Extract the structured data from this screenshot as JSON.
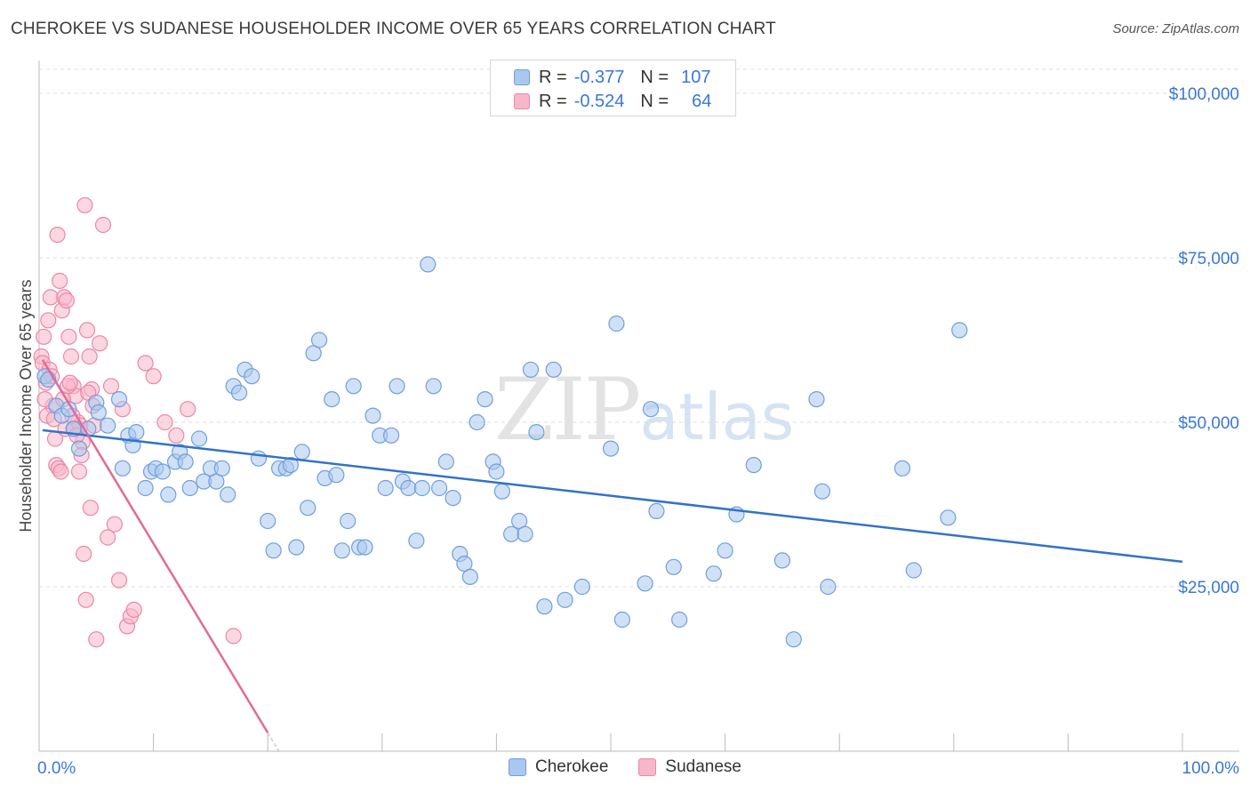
{
  "title": "CHEROKEE VS SUDANESE HOUSEHOLDER INCOME OVER 65 YEARS CORRELATION CHART",
  "source": "Source: ZipAtlas.com",
  "watermark": {
    "zip": "ZIP",
    "atlas": "atlas"
  },
  "colors": {
    "cherokee_fill": "#a9c8ef",
    "cherokee_stroke": "#6f9fdc",
    "cherokee_line": "#3372c9",
    "sudanese_fill": "#f7b7ca",
    "sudanese_stroke": "#ec86a7",
    "sudanese_line": "#e26a97",
    "tick_label": "#3a78d4",
    "grid": "#dcdcdc"
  },
  "legend": {
    "rows": [
      {
        "r_label": "R =",
        "r_value": "-0.377",
        "n_label": "N =",
        "n_value": "107"
      },
      {
        "r_label": "R =",
        "r_value": "-0.524",
        "n_label": "N =",
        "n_value": "64"
      }
    ]
  },
  "chart_data": {
    "type": "scatter",
    "title": "CHEROKEE VS SUDANESE HOUSEHOLDER INCOME OVER 65 YEARS CORRELATION CHART",
    "xlabel": "",
    "ylabel": "Householder Income Over 65 years",
    "xlim": [
      0,
      100
    ],
    "ylim": [
      0,
      105000
    ],
    "x_tick_labels": [
      "0.0%",
      "100.0%"
    ],
    "y_ticks": [
      25000,
      50000,
      75000,
      100000
    ],
    "y_tick_labels": [
      "$25,000",
      "$50,000",
      "$75,000",
      "$100,000"
    ],
    "grid": "horizontal dashed",
    "legend_placement": "top-center",
    "series": [
      {
        "name": "Cherokee",
        "trend": {
          "x": [
            0.3,
            100
          ],
          "y": [
            48800,
            28800
          ]
        },
        "points": [
          [
            0.5,
            57000
          ],
          [
            0.8,
            56500
          ],
          [
            1.5,
            52500
          ],
          [
            2.0,
            51000
          ],
          [
            2.6,
            52000
          ],
          [
            3.0,
            49000
          ],
          [
            3.5,
            46000
          ],
          [
            4.3,
            49000
          ],
          [
            5.0,
            53000
          ],
          [
            5.2,
            51500
          ],
          [
            6.0,
            49500
          ],
          [
            7.0,
            53500
          ],
          [
            7.3,
            43000
          ],
          [
            7.8,
            48000
          ],
          [
            8.2,
            46500
          ],
          [
            8.5,
            48500
          ],
          [
            9.3,
            40000
          ],
          [
            9.8,
            42500
          ],
          [
            10.2,
            43000
          ],
          [
            10.8,
            42500
          ],
          [
            11.3,
            39000
          ],
          [
            11.9,
            44000
          ],
          [
            12.3,
            45500
          ],
          [
            12.8,
            44000
          ],
          [
            13.2,
            40000
          ],
          [
            14.0,
            47500
          ],
          [
            14.4,
            41000
          ],
          [
            15.0,
            43000
          ],
          [
            15.5,
            41000
          ],
          [
            16.0,
            43000
          ],
          [
            16.5,
            39000
          ],
          [
            17.0,
            55500
          ],
          [
            17.5,
            54500
          ],
          [
            18.0,
            58000
          ],
          [
            18.6,
            57000
          ],
          [
            19.2,
            44500
          ],
          [
            20.0,
            35000
          ],
          [
            20.5,
            30500
          ],
          [
            21.0,
            43000
          ],
          [
            21.6,
            43000
          ],
          [
            22.0,
            43500
          ],
          [
            22.5,
            31000
          ],
          [
            23.0,
            45500
          ],
          [
            23.5,
            37000
          ],
          [
            24.0,
            60500
          ],
          [
            24.5,
            62500
          ],
          [
            25.0,
            41500
          ],
          [
            25.6,
            53500
          ],
          [
            26.0,
            42000
          ],
          [
            26.5,
            30500
          ],
          [
            27.0,
            35000
          ],
          [
            27.5,
            55500
          ],
          [
            28.0,
            31000
          ],
          [
            28.5,
            31000
          ],
          [
            29.2,
            51000
          ],
          [
            29.8,
            48000
          ],
          [
            30.3,
            40000
          ],
          [
            30.8,
            48000
          ],
          [
            31.3,
            55500
          ],
          [
            31.8,
            41000
          ],
          [
            32.3,
            40000
          ],
          [
            33.0,
            32000
          ],
          [
            33.5,
            40000
          ],
          [
            34.0,
            74000
          ],
          [
            34.5,
            55500
          ],
          [
            35.0,
            40000
          ],
          [
            35.6,
            44000
          ],
          [
            36.2,
            38500
          ],
          [
            36.8,
            30000
          ],
          [
            37.2,
            28500
          ],
          [
            37.7,
            26500
          ],
          [
            38.3,
            50000
          ],
          [
            39.0,
            53500
          ],
          [
            39.7,
            44000
          ],
          [
            40.0,
            42500
          ],
          [
            40.5,
            39500
          ],
          [
            41.3,
            33000
          ],
          [
            42.0,
            35000
          ],
          [
            42.5,
            33000
          ],
          [
            43.0,
            58000
          ],
          [
            43.5,
            48500
          ],
          [
            44.2,
            22000
          ],
          [
            45.0,
            58000
          ],
          [
            46.0,
            23000
          ],
          [
            47.5,
            25000
          ],
          [
            50.0,
            46000
          ],
          [
            50.5,
            65000
          ],
          [
            51.0,
            20000
          ],
          [
            53.0,
            25500
          ],
          [
            53.5,
            52000
          ],
          [
            54.0,
            36500
          ],
          [
            55.5,
            28000
          ],
          [
            56.0,
            20000
          ],
          [
            59.0,
            27000
          ],
          [
            60.0,
            30500
          ],
          [
            61.0,
            36000
          ],
          [
            62.5,
            43500
          ],
          [
            65.0,
            29000
          ],
          [
            66.0,
            17000
          ],
          [
            68.0,
            53500
          ],
          [
            68.5,
            39500
          ],
          [
            69.0,
            25000
          ],
          [
            75.5,
            43000
          ],
          [
            76.5,
            27500
          ],
          [
            79.5,
            35500
          ],
          [
            80.5,
            64000
          ]
        ]
      },
      {
        "name": "Sudanese",
        "trend": {
          "x": [
            0.3,
            20.0
          ],
          "y": [
            59500,
            2800
          ]
        },
        "points": [
          [
            0.2,
            60000
          ],
          [
            0.4,
            63000
          ],
          [
            0.6,
            56000
          ],
          [
            0.8,
            65500
          ],
          [
            1.0,
            69000
          ],
          [
            1.2,
            52500
          ],
          [
            1.4,
            47500
          ],
          [
            1.6,
            78500
          ],
          [
            1.8,
            71500
          ],
          [
            2.0,
            67000
          ],
          [
            2.2,
            69000
          ],
          [
            2.4,
            68500
          ],
          [
            2.6,
            63000
          ],
          [
            2.8,
            60000
          ],
          [
            3.0,
            55500
          ],
          [
            3.2,
            54000
          ],
          [
            3.4,
            50000
          ],
          [
            3.6,
            49500
          ],
          [
            3.8,
            47000
          ],
          [
            4.0,
            83000
          ],
          [
            4.2,
            64000
          ],
          [
            4.4,
            60000
          ],
          [
            4.6,
            55000
          ],
          [
            4.8,
            49500
          ],
          [
            0.3,
            59000
          ],
          [
            0.5,
            53500
          ],
          [
            0.7,
            51000
          ],
          [
            0.9,
            58000
          ],
          [
            1.1,
            57000
          ],
          [
            1.3,
            50500
          ],
          [
            1.5,
            43500
          ],
          [
            1.7,
            43000
          ],
          [
            1.9,
            42500
          ],
          [
            2.1,
            53500
          ],
          [
            2.3,
            49000
          ],
          [
            2.5,
            55500
          ],
          [
            2.7,
            56000
          ],
          [
            2.9,
            51000
          ],
          [
            3.1,
            49000
          ],
          [
            3.3,
            48000
          ],
          [
            3.5,
            42500
          ],
          [
            3.7,
            45000
          ],
          [
            3.9,
            30000
          ],
          [
            4.1,
            23000
          ],
          [
            4.3,
            54500
          ],
          [
            4.5,
            37000
          ],
          [
            4.7,
            52500
          ],
          [
            5.0,
            17000
          ],
          [
            5.3,
            62000
          ],
          [
            5.6,
            80000
          ],
          [
            6.0,
            32500
          ],
          [
            6.3,
            55500
          ],
          [
            6.6,
            34500
          ],
          [
            7.0,
            26000
          ],
          [
            7.3,
            52000
          ],
          [
            7.7,
            19000
          ],
          [
            8.0,
            20500
          ],
          [
            8.3,
            21500
          ],
          [
            9.3,
            59000
          ],
          [
            10.0,
            57000
          ],
          [
            11.0,
            50000
          ],
          [
            12.0,
            48000
          ],
          [
            13.0,
            52000
          ],
          [
            17.0,
            17500
          ]
        ]
      }
    ]
  }
}
